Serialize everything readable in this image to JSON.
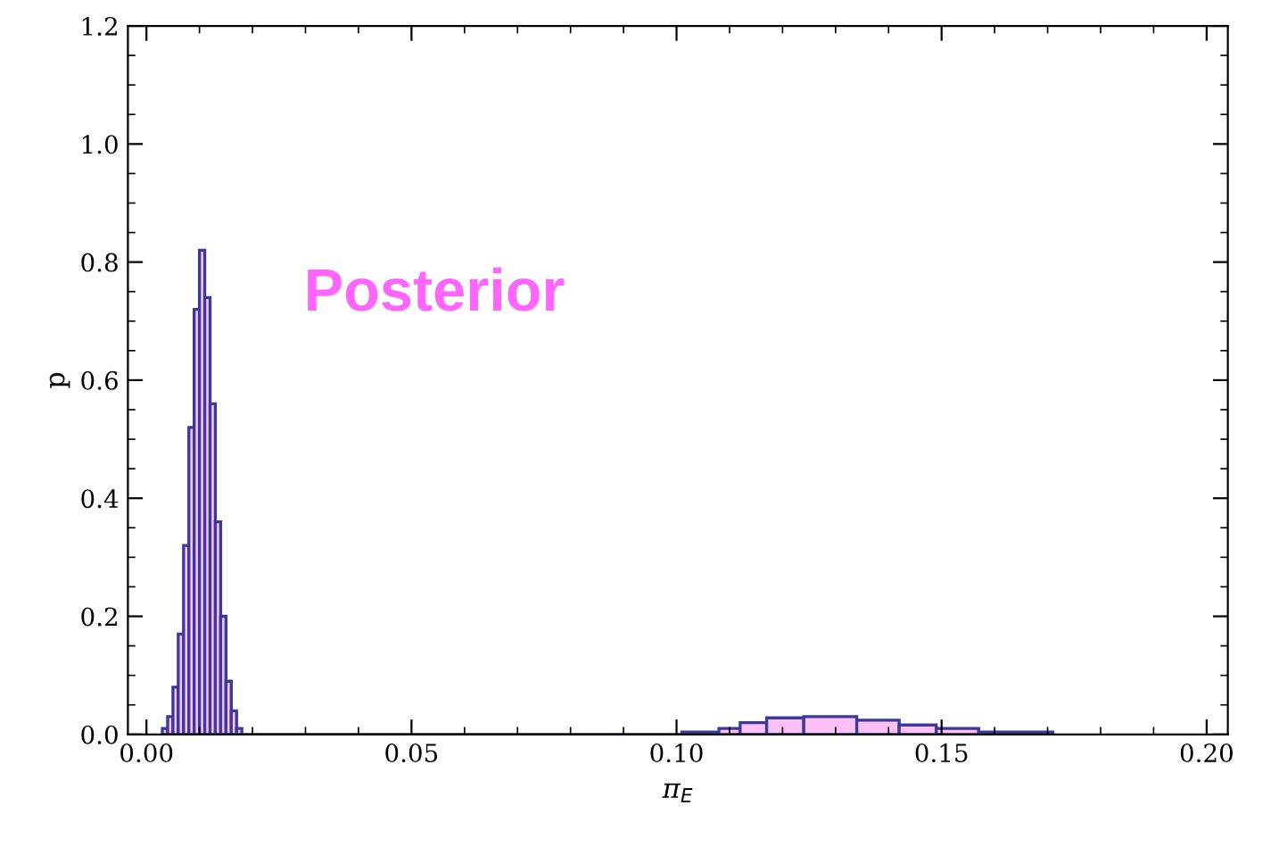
{
  "chart_data": {
    "type": "histogram",
    "xlabel": "π$_{E}$",
    "ylabel": "p",
    "annotations": [
      "Posterior"
    ],
    "bins": [
      0.003,
      0.004,
      0.005,
      0.006,
      0.007,
      0.008,
      0.009,
      0.01,
      0.011,
      0.012,
      0.013,
      0.014,
      0.015,
      0.016,
      0.017,
      0.018,
      0.101,
      0.108,
      0.112,
      0.117,
      0.124,
      0.134,
      0.142,
      0.149,
      0.157,
      0.171
    ],
    "values": [
      0.01,
      0.03,
      0.08,
      0.17,
      0.32,
      0.52,
      0.72,
      0.82,
      0.74,
      0.56,
      0.36,
      0.2,
      0.09,
      0.04,
      0.01,
      0,
      0.004,
      0.01,
      0.02,
      0.028,
      0.03,
      0.024,
      0.016,
      0.01,
      0.004
    ],
    "color": "#ffc0f8",
    "xlim": [
      -0.0035,
      0.204
    ],
    "xticks": [
      {
        "value": 0,
        "label": "0.00"
      },
      0.05,
      {
        "value": 0.1,
        "label": "0.10"
      },
      0.15,
      {
        "value": 0.2,
        "label": "0.20"
      }
    ],
    "ylim": [
      0,
      1.2
    ],
    "yticks": [
      {
        "value": 0,
        "label": "0.0"
      },
      0.2,
      0.4,
      0.6,
      0.8,
      {
        "value": 1.0,
        "label": "1.0"
      },
      1.2
    ],
    "grid": false
  }
}
